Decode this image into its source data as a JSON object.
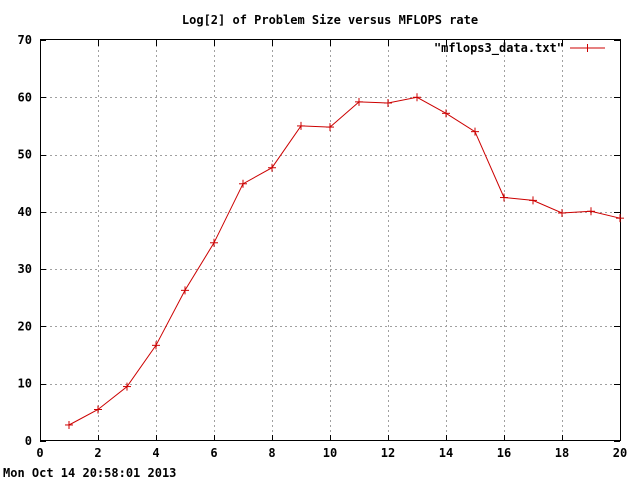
{
  "chart_data": {
    "type": "line",
    "title": "Log[2] of Problem Size versus MFLOPS rate",
    "xlabel": "",
    "ylabel": "",
    "xlim": [
      0,
      20
    ],
    "ylim": [
      0,
      70
    ],
    "xticks": [
      0,
      2,
      4,
      6,
      8,
      10,
      12,
      14,
      16,
      18,
      20
    ],
    "yticks": [
      0,
      10,
      20,
      30,
      40,
      50,
      60,
      70
    ],
    "grid": true,
    "legend_position": "top-right",
    "series": [
      {
        "name": "\"mflops3_data.txt\"",
        "color": "#cc0000",
        "marker": "plus",
        "x": [
          1,
          2,
          3,
          4,
          5,
          6,
          7,
          8,
          9,
          10,
          11,
          12,
          13,
          14,
          15,
          16,
          17,
          18,
          19,
          20
        ],
        "y": [
          2.8,
          5.5,
          9.5,
          16.7,
          26.3,
          34.6,
          44.9,
          47.7,
          55.0,
          54.8,
          59.2,
          59.0,
          60.0,
          57.2,
          54.0,
          42.5,
          42.0,
          39.8,
          40.1,
          38.9
        ]
      }
    ]
  },
  "footer": {
    "timestamp": "Mon Oct 14 20:58:01 2013"
  }
}
